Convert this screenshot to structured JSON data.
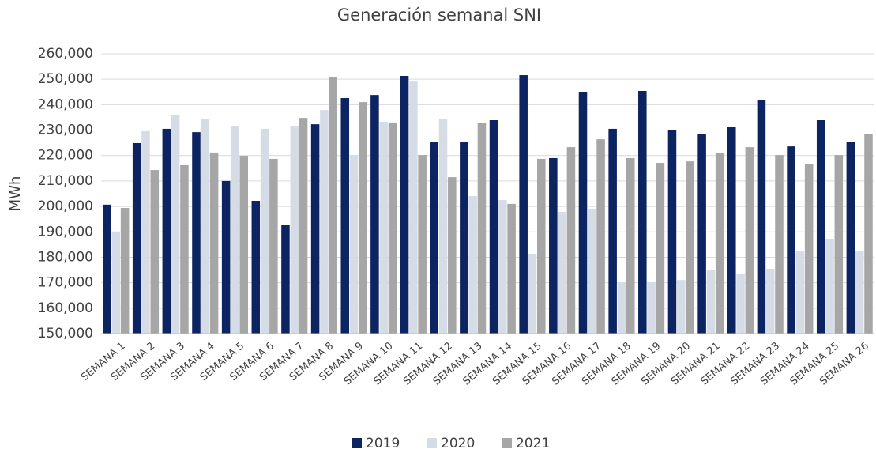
{
  "chart_data": {
    "type": "bar",
    "title": "Generación semanal SNI",
    "y_label": "MWh",
    "categories": [
      "SEMANA 1",
      "SEMANA 2",
      "SEMANA 3",
      "SEMANA 4",
      "SEMANA 5",
      "SEMANA 6",
      "SEMANA 7",
      "SEMANA 8",
      "SEMANA 9",
      "SEMANA 10",
      "SEMANA 11",
      "SEMANA 12",
      "SEMANA 13",
      "SEMANA 14",
      "SEMANA 15",
      "SEMANA 16",
      "SEMANA 17",
      "SEMANA 18",
      "SEMANA 19",
      "SEMANA 20",
      "SEMANA 21",
      "SEMANA 22",
      "SEMANA 23",
      "SEMANA 24",
      "SEMANA 25",
      "SEMANA 26"
    ],
    "series": [
      {
        "name": "2019",
        "color": "#0c2461",
        "values": [
          200700,
          224900,
          230500,
          229200,
          210000,
          202200,
          192600,
          232300,
          242600,
          243800,
          251300,
          225200,
          225500,
          233900,
          251600,
          219000,
          244800,
          230500,
          245400,
          229900,
          228300,
          231100,
          241700,
          223600,
          233900,
          225200
        ]
      },
      {
        "name": "2020",
        "color": "#d6dce6",
        "values": [
          190000,
          229600,
          235800,
          234500,
          231400,
          230500,
          231400,
          237900,
          220200,
          233300,
          249100,
          234200,
          204100,
          202500,
          181400,
          197900,
          199100,
          170200,
          170200,
          171100,
          174900,
          173300,
          175500,
          182600,
          187300,
          182300
        ]
      },
      {
        "name": "2021",
        "color": "#a6a6a6",
        "values": [
          199400,
          214300,
          216200,
          221200,
          219900,
          218700,
          234800,
          251000,
          241000,
          233000,
          220200,
          211500,
          232700,
          201000,
          218700,
          223300,
          226400,
          219000,
          217100,
          217700,
          220900,
          223300,
          220200,
          216800,
          220200,
          228300
        ]
      }
    ],
    "ylim": [
      150000,
      260000
    ],
    "yticks": [
      {
        "value": 150000,
        "label": "150,000"
      },
      {
        "value": 160000,
        "label": "160,000"
      },
      {
        "value": 170000,
        "label": "170,000"
      },
      {
        "value": 180000,
        "label": "180,000"
      },
      {
        "value": 190000,
        "label": "190,000"
      },
      {
        "value": 200000,
        "label": "200,000"
      },
      {
        "value": 210000,
        "label": "210,000"
      },
      {
        "value": 220000,
        "label": "220,000"
      },
      {
        "value": 230000,
        "label": "230,000"
      },
      {
        "value": 240000,
        "label": "240,000"
      },
      {
        "value": 250000,
        "label": "250,000"
      },
      {
        "value": 260000,
        "label": "260,000"
      }
    ],
    "grid": true,
    "legend": "bottom"
  }
}
